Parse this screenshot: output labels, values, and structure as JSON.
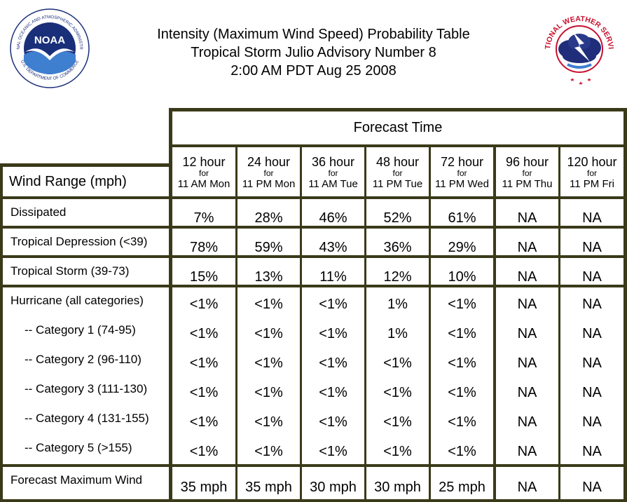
{
  "title": {
    "line1": "Intensity (Maximum Wind Speed) Probability Table",
    "line2": "Tropical Storm Julio Advisory Number 8",
    "line3": "2:00 AM PDT Aug 25 2008"
  },
  "logos": {
    "noaa": {
      "text": "NOAA",
      "ring_text": "NATIONAL OCEANIC AND ATMOSPHERIC ADMINISTRATION",
      "bottom_text": "U.S. DEPARTMENT OF COMMERCE"
    },
    "nws": {
      "ring_text": "NATIONAL WEATHER SERVICE"
    }
  },
  "table": {
    "forecast_time_label": "Forecast Time",
    "wind_range_label": "Wind Range (mph)",
    "columns": [
      {
        "hours": "12 hour",
        "for": "for",
        "time": "11 AM Mon"
      },
      {
        "hours": "24 hour",
        "for": "for",
        "time": "11 PM Mon"
      },
      {
        "hours": "36 hour",
        "for": "for",
        "time": "11 AM Tue"
      },
      {
        "hours": "48 hour",
        "for": "for",
        "time": "11 PM Tue"
      },
      {
        "hours": "72 hour",
        "for": "for",
        "time": "11 PM Wed"
      },
      {
        "hours": "96 hour",
        "for": "for",
        "time": "11 PM Thu"
      },
      {
        "hours": "120 hour",
        "for": "for",
        "time": "11 PM Fri"
      }
    ],
    "rows": {
      "dissipated": {
        "label": "Dissipated",
        "values": [
          "7%",
          "28%",
          "46%",
          "52%",
          "61%",
          "NA",
          "NA"
        ]
      },
      "depression": {
        "label": "Tropical Depression (<39)",
        "values": [
          "78%",
          "59%",
          "43%",
          "36%",
          "29%",
          "NA",
          "NA"
        ]
      },
      "storm": {
        "label": "Tropical Storm (39-73)",
        "values": [
          "15%",
          "13%",
          "11%",
          "12%",
          "10%",
          "NA",
          "NA"
        ]
      },
      "hurricane": [
        {
          "label": "Hurricane (all categories)",
          "values": [
            "<1%",
            "<1%",
            "<1%",
            "1%",
            "<1%",
            "NA",
            "NA"
          ]
        },
        {
          "label": "-- Category 1 (74-95)",
          "values": [
            "<1%",
            "<1%",
            "<1%",
            "1%",
            "<1%",
            "NA",
            "NA"
          ]
        },
        {
          "label": "-- Category 2 (96-110)",
          "values": [
            "<1%",
            "<1%",
            "<1%",
            "<1%",
            "<1%",
            "NA",
            "NA"
          ]
        },
        {
          "label": "-- Category 3 (111-130)",
          "values": [
            "<1%",
            "<1%",
            "<1%",
            "<1%",
            "<1%",
            "NA",
            "NA"
          ]
        },
        {
          "label": "-- Category 4 (131-155)",
          "values": [
            "<1%",
            "<1%",
            "<1%",
            "<1%",
            "<1%",
            "NA",
            "NA"
          ]
        },
        {
          "label": "-- Category 5 (>155)",
          "values": [
            "<1%",
            "<1%",
            "<1%",
            "<1%",
            "<1%",
            "NA",
            "NA"
          ]
        }
      ],
      "max_wind": {
        "label": "Forecast Maximum Wind",
        "values": [
          "35 mph",
          "35 mph",
          "30 mph",
          "30 mph",
          "25 mph",
          "NA",
          "NA"
        ]
      }
    }
  },
  "colors": {
    "border": "#3a3a1a",
    "noaa_blue": "#1a2f7a",
    "nws_red": "#c8102e"
  }
}
